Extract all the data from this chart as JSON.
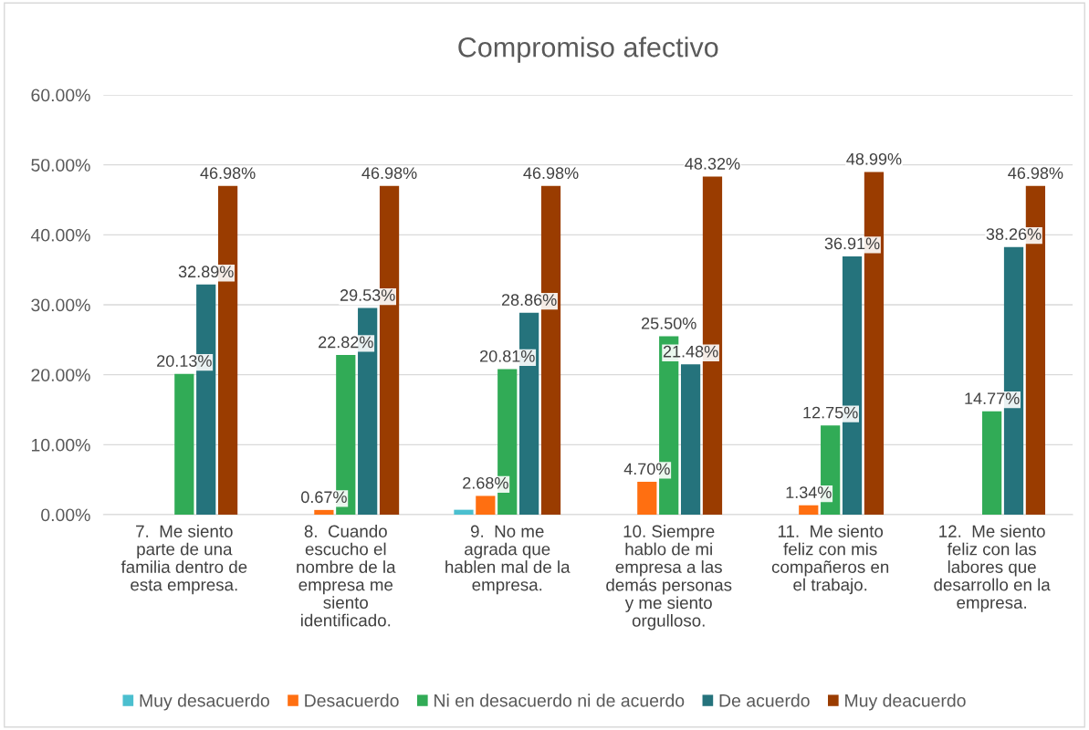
{
  "chart_data": {
    "type": "bar",
    "title": "Compromiso afectivo",
    "categories": [
      "7.  Me siento\nparte de una\nfamilia dentro de\nesta empresa.",
      "8.  Cuando\nescucho el\nnombre de la\nempresa me\nsiento\nidentificado.",
      "9.  No me\nagrada que\nhablen mal de la\nempresa.",
      "10. Siempre\nhablo de mi\nempresa a las\ndemás personas\ny me siento\norgulloso.",
      "11.  Me siento\nfeliz con mis\ncompañeros en\nel trabajo.",
      "12.  Me siento\nfeliz con las\nlabores que\ndesarrollo en la\nempresa."
    ],
    "series": [
      {
        "name": "Muy desacuerdo",
        "color": "#4bbfcf",
        "values": [
          0,
          0,
          0.7,
          0,
          0,
          0
        ],
        "value_labels": [
          null,
          null,
          null,
          null,
          null,
          null
        ]
      },
      {
        "name": "Desacuerdo",
        "color": "#ff6f11",
        "values": [
          0,
          0.67,
          2.68,
          4.7,
          1.34,
          0
        ],
        "value_labels": [
          null,
          "0.67%",
          "2.68%",
          "4.70%",
          "1.34%",
          null
        ]
      },
      {
        "name": "Ni en desacuerdo ni de acuerdo",
        "color": "#31ab56",
        "values": [
          20.13,
          22.82,
          20.81,
          25.5,
          12.75,
          14.77
        ],
        "value_labels": [
          "20.13%",
          "22.82%",
          "20.81%",
          "25.50%",
          "12.75%",
          "14.77%"
        ]
      },
      {
        "name": "De acuerdo",
        "color": "#25737c",
        "values": [
          32.89,
          29.53,
          28.86,
          21.48,
          36.91,
          38.26
        ],
        "value_labels": [
          "32.89%",
          "29.53%",
          "28.86%",
          "21.48%",
          "36.91%",
          "38.26%"
        ]
      },
      {
        "name": "Muy deacuerdo",
        "color": "#9a3c00",
        "values": [
          46.98,
          46.98,
          46.98,
          48.32,
          48.99,
          46.98
        ],
        "value_labels": [
          "46.98%",
          "46.98%",
          "46.98%",
          "48.32%",
          "48.99%",
          "46.98%"
        ]
      }
    ],
    "ylim": [
      0,
      60
    ],
    "yticks": [
      {
        "value": 0,
        "label": "0.00%"
      },
      {
        "value": 10,
        "label": "10.00%"
      },
      {
        "value": 20,
        "label": "20.00%"
      },
      {
        "value": 30,
        "label": "30.00%"
      },
      {
        "value": 40,
        "label": "40.00%"
      },
      {
        "value": 50,
        "label": "50.00%"
      },
      {
        "value": 60,
        "label": "60.00%"
      }
    ],
    "grid": "y",
    "legend": "bottom"
  }
}
